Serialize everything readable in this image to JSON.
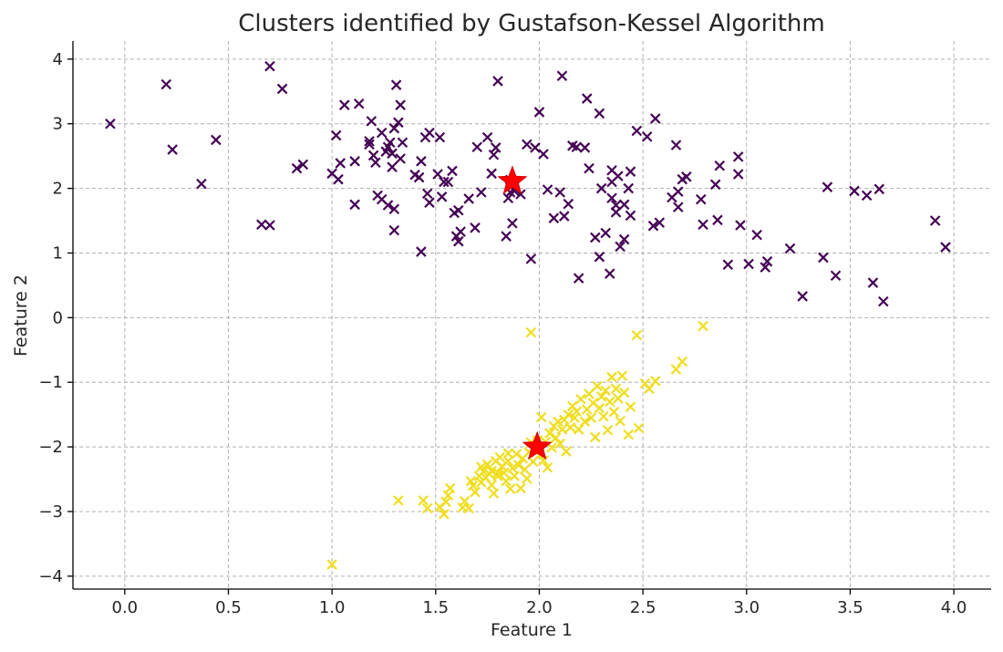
{
  "chart_data": {
    "type": "scatter",
    "title": "Clusters identified by Gustafson-Kessel Algorithm",
    "xlabel": "Feature 1",
    "ylabel": "Feature 2",
    "xlim": [
      -0.25,
      4.18
    ],
    "ylim": [
      -4.2,
      4.28
    ],
    "xticks": [
      0.0,
      0.5,
      1.0,
      1.5,
      2.0,
      2.5,
      3.0,
      3.5,
      4.0
    ],
    "xtick_labels": [
      "0.0",
      "0.5",
      "1.0",
      "1.5",
      "2.0",
      "2.5",
      "3.0",
      "3.5",
      "4.0"
    ],
    "yticks": [
      -4,
      -3,
      -2,
      -1,
      0,
      1,
      2,
      3,
      4
    ],
    "ytick_labels": [
      "−4",
      "−3",
      "−2",
      "−1",
      "0",
      "1",
      "2",
      "3",
      "4"
    ],
    "grid": true,
    "marker": "x",
    "series": [
      {
        "color": "#440154",
        "points": [
          [
            -0.07,
            3.0
          ],
          [
            0.2,
            3.61
          ],
          [
            0.23,
            2.6
          ],
          [
            0.37,
            2.07
          ],
          [
            0.44,
            2.75
          ],
          [
            0.66,
            1.44
          ],
          [
            0.7,
            1.43
          ],
          [
            0.7,
            3.89
          ],
          [
            0.76,
            3.54
          ],
          [
            0.83,
            2.31
          ],
          [
            0.86,
            2.37
          ],
          [
            1.0,
            2.23
          ],
          [
            1.02,
            2.82
          ],
          [
            1.03,
            2.14
          ],
          [
            1.04,
            2.39
          ],
          [
            1.06,
            3.29
          ],
          [
            1.11,
            1.75
          ],
          [
            1.11,
            2.42
          ],
          [
            1.13,
            3.31
          ],
          [
            1.18,
            2.68
          ],
          [
            1.18,
            2.73
          ],
          [
            1.19,
            3.04
          ],
          [
            1.2,
            2.51
          ],
          [
            1.21,
            2.4
          ],
          [
            1.22,
            1.89
          ],
          [
            1.24,
            1.83
          ],
          [
            1.24,
            2.86
          ],
          [
            1.26,
            2.57
          ],
          [
            1.27,
            2.64
          ],
          [
            1.27,
            1.74
          ],
          [
            1.28,
            2.71
          ],
          [
            1.29,
            2.33
          ],
          [
            1.29,
            2.54
          ],
          [
            1.3,
            1.35
          ],
          [
            1.3,
            2.93
          ],
          [
            1.3,
            1.68
          ],
          [
            1.31,
            3.6
          ],
          [
            1.32,
            3.02
          ],
          [
            1.33,
            3.29
          ],
          [
            1.33,
            2.46
          ],
          [
            1.34,
            2.71
          ],
          [
            1.4,
            2.21
          ],
          [
            1.42,
            2.17
          ],
          [
            1.43,
            2.42
          ],
          [
            1.43,
            1.02
          ],
          [
            1.45,
            2.79
          ],
          [
            1.46,
            1.92
          ],
          [
            1.47,
            1.78
          ],
          [
            1.47,
            2.86
          ],
          [
            1.51,
            2.22
          ],
          [
            1.52,
            2.79
          ],
          [
            1.53,
            1.87
          ],
          [
            1.54,
            2.1
          ],
          [
            1.56,
            2.1
          ],
          [
            1.58,
            2.27
          ],
          [
            1.59,
            1.62
          ],
          [
            1.6,
            1.26
          ],
          [
            1.61,
            1.18
          ],
          [
            1.61,
            1.66
          ],
          [
            1.62,
            1.33
          ],
          [
            1.66,
            1.84
          ],
          [
            1.69,
            1.39
          ],
          [
            1.7,
            2.64
          ],
          [
            1.72,
            1.94
          ],
          [
            1.75,
            2.79
          ],
          [
            1.77,
            2.23
          ],
          [
            1.78,
            2.52
          ],
          [
            1.79,
            2.63
          ],
          [
            1.8,
            3.66
          ],
          [
            1.84,
            1.26
          ],
          [
            1.85,
            1.85
          ],
          [
            1.86,
            1.94
          ],
          [
            1.86,
            2.13
          ],
          [
            1.87,
            1.46
          ],
          [
            1.88,
            1.96
          ],
          [
            1.91,
            1.91
          ],
          [
            1.94,
            2.68
          ],
          [
            1.96,
            0.91
          ],
          [
            1.98,
            2.63
          ],
          [
            2.0,
            3.18
          ],
          [
            2.02,
            2.53
          ],
          [
            2.04,
            1.98
          ],
          [
            2.07,
            1.54
          ],
          [
            2.1,
            1.94
          ],
          [
            2.11,
            3.74
          ],
          [
            2.12,
            1.57
          ],
          [
            2.14,
            1.76
          ],
          [
            2.16,
            2.66
          ],
          [
            2.18,
            2.64
          ],
          [
            2.19,
            0.61
          ],
          [
            2.22,
            2.63
          ],
          [
            2.23,
            3.39
          ],
          [
            2.24,
            2.31
          ],
          [
            2.27,
            1.24
          ],
          [
            2.29,
            3.16
          ],
          [
            2.29,
            0.94
          ],
          [
            2.3,
            2.0
          ],
          [
            2.32,
            1.31
          ],
          [
            2.34,
            0.68
          ],
          [
            2.35,
            1.85
          ],
          [
            2.35,
            2.1
          ],
          [
            2.35,
            2.28
          ],
          [
            2.37,
            1.63
          ],
          [
            2.37,
            1.74
          ],
          [
            2.38,
            2.19
          ],
          [
            2.39,
            1.1
          ],
          [
            2.41,
            1.75
          ],
          [
            2.41,
            1.21
          ],
          [
            2.43,
            2.0
          ],
          [
            2.44,
            1.58
          ],
          [
            2.44,
            2.26
          ],
          [
            2.47,
            2.89
          ],
          [
            2.52,
            2.8
          ],
          [
            2.55,
            1.42
          ],
          [
            2.56,
            3.08
          ],
          [
            2.58,
            1.47
          ],
          [
            2.64,
            1.86
          ],
          [
            2.66,
            2.67
          ],
          [
            2.67,
            1.71
          ],
          [
            2.67,
            1.95
          ],
          [
            2.69,
            2.14
          ],
          [
            2.71,
            2.18
          ],
          [
            2.78,
            1.83
          ],
          [
            2.79,
            1.44
          ],
          [
            2.85,
            2.06
          ],
          [
            2.86,
            1.51
          ],
          [
            2.87,
            2.35
          ],
          [
            2.91,
            0.82
          ],
          [
            2.96,
            2.49
          ],
          [
            2.96,
            2.22
          ],
          [
            2.97,
            1.43
          ],
          [
            3.01,
            0.83
          ],
          [
            3.05,
            1.28
          ],
          [
            3.09,
            0.78
          ],
          [
            3.1,
            0.87
          ],
          [
            3.21,
            1.07
          ],
          [
            3.27,
            0.33
          ],
          [
            3.37,
            0.93
          ],
          [
            3.39,
            2.02
          ],
          [
            3.43,
            0.65
          ],
          [
            3.52,
            1.96
          ],
          [
            3.58,
            1.89
          ],
          [
            3.61,
            0.54
          ],
          [
            3.64,
            1.99
          ],
          [
            3.66,
            0.25
          ],
          [
            3.91,
            1.5
          ],
          [
            3.96,
            1.09
          ]
        ]
      },
      {
        "color": "#f0de1e",
        "points": [
          [
            1.0,
            -3.82
          ],
          [
            1.32,
            -2.83
          ],
          [
            1.44,
            -2.83
          ],
          [
            1.46,
            -2.95
          ],
          [
            1.52,
            -2.93
          ],
          [
            1.54,
            -3.04
          ],
          [
            1.55,
            -2.85
          ],
          [
            1.56,
            -2.75
          ],
          [
            1.57,
            -2.64
          ],
          [
            1.63,
            -2.94
          ],
          [
            1.64,
            -2.84
          ],
          [
            1.66,
            -2.95
          ],
          [
            1.67,
            -2.53
          ],
          [
            1.68,
            -2.6
          ],
          [
            1.69,
            -2.7
          ],
          [
            1.71,
            -2.45
          ],
          [
            1.72,
            -2.55
          ],
          [
            1.72,
            -2.31
          ],
          [
            1.73,
            -2.38
          ],
          [
            1.74,
            -2.47
          ],
          [
            1.75,
            -2.27
          ],
          [
            1.76,
            -2.42
          ],
          [
            1.77,
            -2.37
          ],
          [
            1.77,
            -2.59
          ],
          [
            1.78,
            -2.72
          ],
          [
            1.79,
            -2.22
          ],
          [
            1.8,
            -2.4
          ],
          [
            1.8,
            -2.45
          ],
          [
            1.81,
            -2.16
          ],
          [
            1.82,
            -2.3
          ],
          [
            1.83,
            -2.4
          ],
          [
            1.84,
            -2.53
          ],
          [
            1.85,
            -2.22
          ],
          [
            1.85,
            -2.1
          ],
          [
            1.86,
            -2.65
          ],
          [
            1.87,
            -2.33
          ],
          [
            1.88,
            -2.45
          ],
          [
            1.89,
            -2.11
          ],
          [
            1.9,
            -2.28
          ],
          [
            1.91,
            -2.64
          ],
          [
            1.92,
            -2.18
          ],
          [
            1.93,
            -2.35
          ],
          [
            1.94,
            -2.49
          ],
          [
            1.95,
            -2.08
          ],
          [
            1.96,
            -1.93
          ],
          [
            1.96,
            -0.23
          ],
          [
            1.97,
            -2.23
          ],
          [
            1.98,
            -2.02
          ],
          [
            1.99,
            -1.9
          ],
          [
            2.0,
            -2.13
          ],
          [
            2.01,
            -1.54
          ],
          [
            2.02,
            -2.21
          ],
          [
            2.03,
            -1.92
          ],
          [
            2.04,
            -2.32
          ],
          [
            2.05,
            -1.79
          ],
          [
            2.06,
            -2.01
          ],
          [
            2.07,
            -1.68
          ],
          [
            2.08,
            -1.86
          ],
          [
            2.09,
            -1.61
          ],
          [
            2.1,
            -1.95
          ],
          [
            2.11,
            -1.73
          ],
          [
            2.12,
            -1.58
          ],
          [
            2.13,
            -2.07
          ],
          [
            2.14,
            -1.5
          ],
          [
            2.15,
            -1.7
          ],
          [
            2.16,
            -1.37
          ],
          [
            2.17,
            -1.55
          ],
          [
            2.18,
            -1.45
          ],
          [
            2.19,
            -1.73
          ],
          [
            2.2,
            -1.26
          ],
          [
            2.22,
            -1.61
          ],
          [
            2.23,
            -1.42
          ],
          [
            2.24,
            -1.18
          ],
          [
            2.25,
            -1.55
          ],
          [
            2.26,
            -1.32
          ],
          [
            2.27,
            -1.85
          ],
          [
            2.28,
            -1.06
          ],
          [
            2.29,
            -1.4
          ],
          [
            2.3,
            -1.22
          ],
          [
            2.31,
            -1.53
          ],
          [
            2.32,
            -1.13
          ],
          [
            2.33,
            -1.74
          ],
          [
            2.34,
            -1.3
          ],
          [
            2.35,
            -0.92
          ],
          [
            2.36,
            -1.46
          ],
          [
            2.37,
            -1.1
          ],
          [
            2.38,
            -1.25
          ],
          [
            2.39,
            -1.6
          ],
          [
            2.4,
            -0.9
          ],
          [
            2.41,
            -1.16
          ],
          [
            2.43,
            -1.81
          ],
          [
            2.44,
            -1.38
          ],
          [
            2.47,
            -0.27
          ],
          [
            2.48,
            -1.71
          ],
          [
            2.51,
            -1.02
          ],
          [
            2.53,
            -1.1
          ],
          [
            2.56,
            -0.98
          ],
          [
            2.66,
            -0.8
          ],
          [
            2.69,
            -0.68
          ],
          [
            2.79,
            -0.13
          ]
        ]
      }
    ],
    "centroids": {
      "color": "#ff0000",
      "marker": "star",
      "points": [
        [
          1.87,
          2.11
        ],
        [
          1.99,
          -2.0
        ]
      ]
    }
  }
}
